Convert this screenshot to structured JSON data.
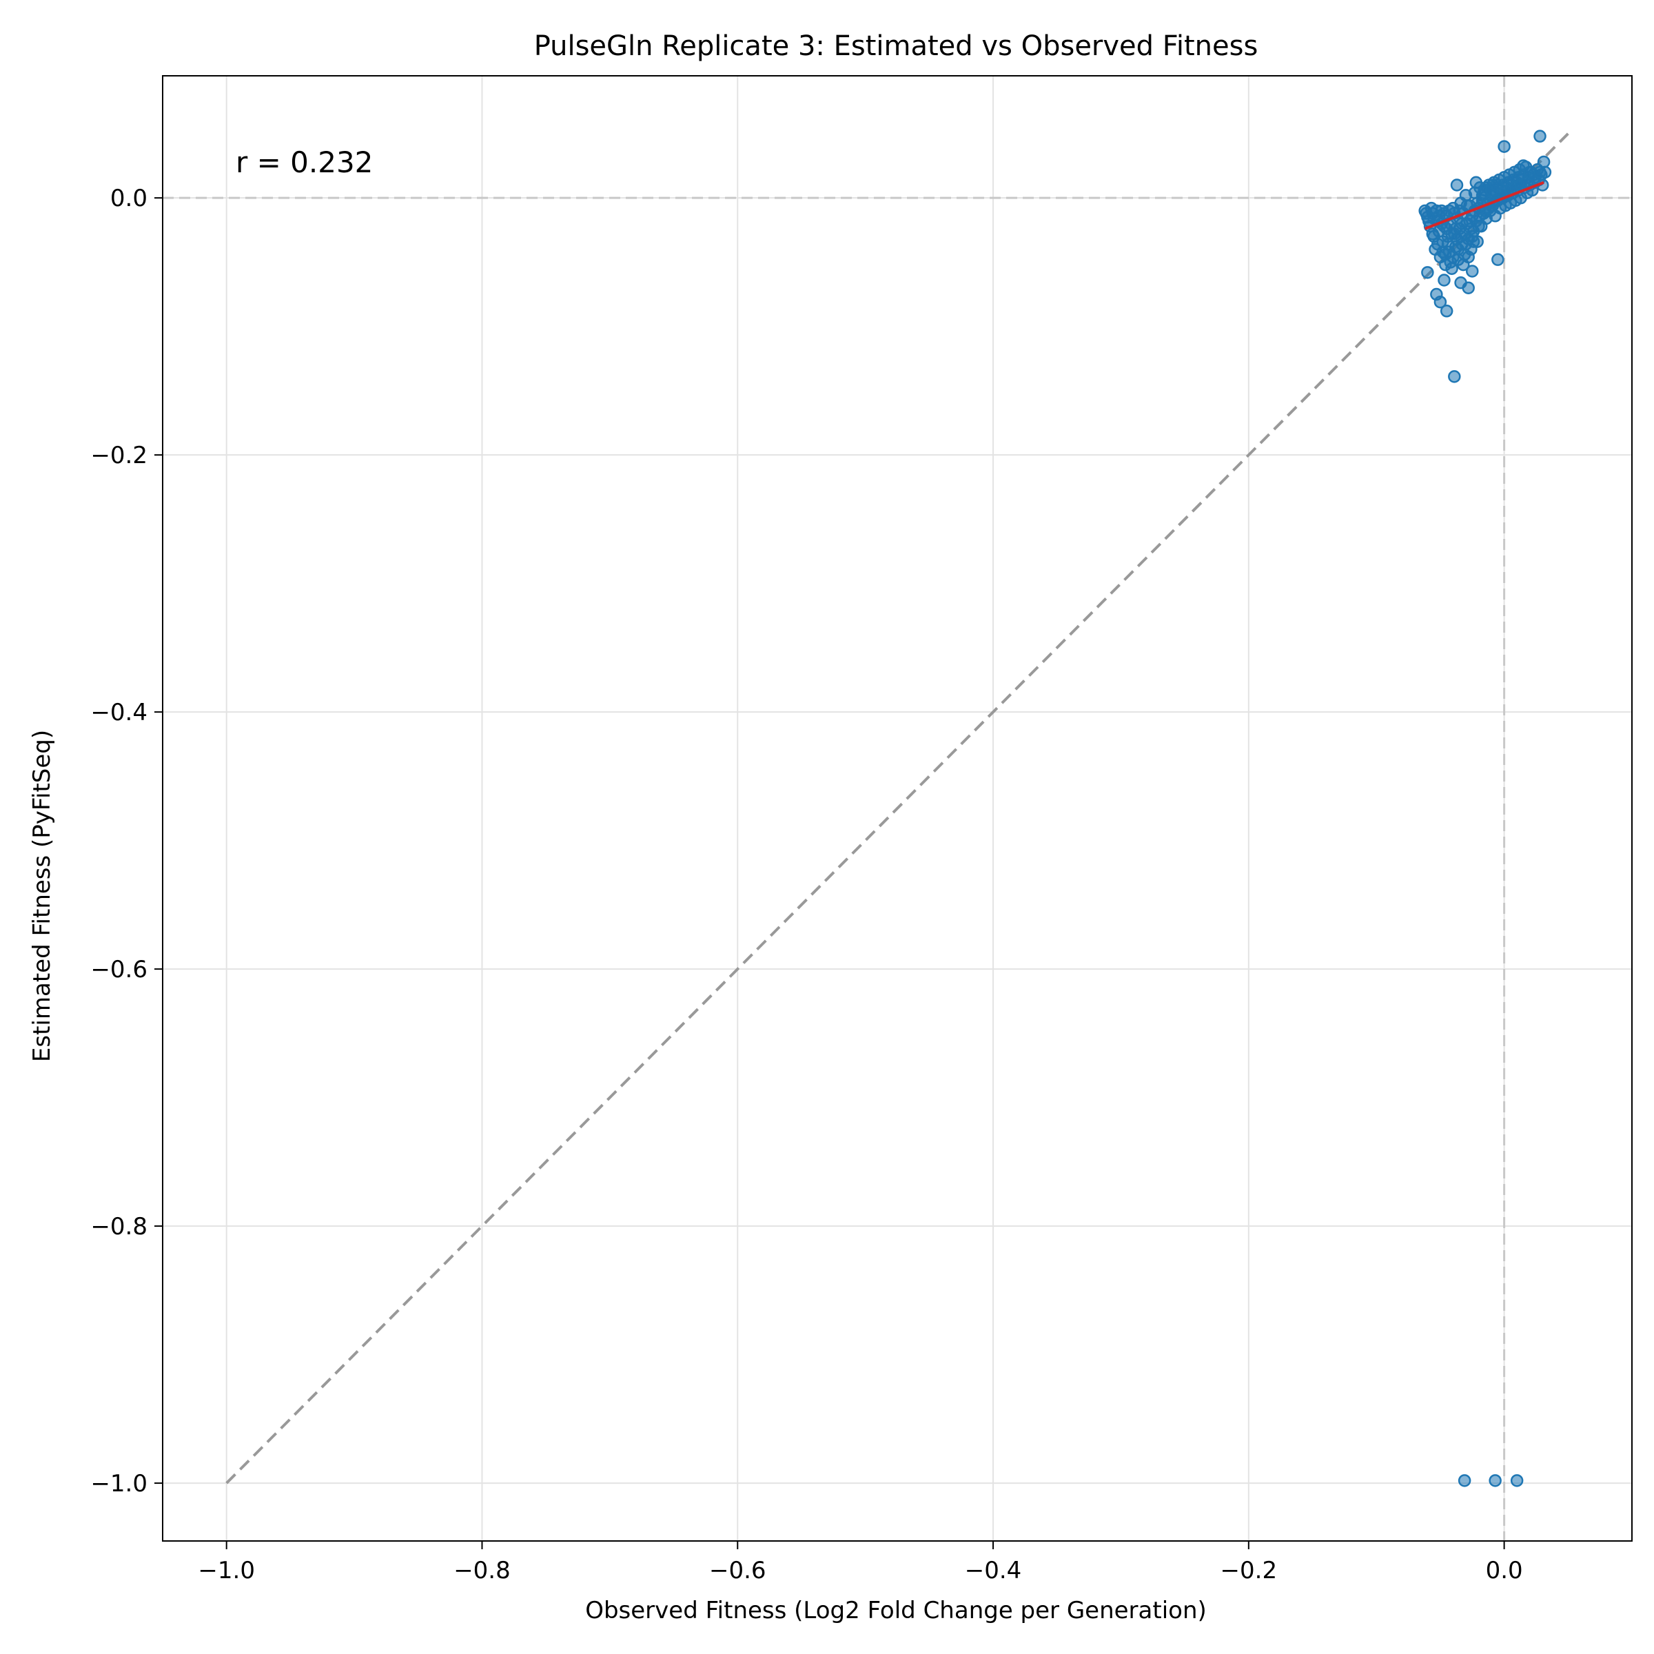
{
  "chart_data": {
    "type": "scatter",
    "title": "PulseGln Replicate 3: Estimated vs Observed Fitness",
    "xlabel": "Observed Fitness (Log2 Fold Change per Generation)",
    "ylabel": "Estimated Fitness (PyFitSeq)",
    "xlim": [
      -1.05,
      0.1
    ],
    "ylim": [
      -1.045,
      0.095
    ],
    "x_ticks": [
      -1.0,
      -0.8,
      -0.6,
      -0.4,
      -0.2,
      0.0
    ],
    "x_tick_labels": [
      "−1.0",
      "−0.8",
      "−0.6",
      "−0.4",
      "−0.2",
      "0.0"
    ],
    "y_ticks": [
      0.0,
      -0.2,
      -0.4,
      -0.6,
      -0.8,
      -1.0
    ],
    "y_tick_labels": [
      "0.0",
      "−0.2",
      "−0.4",
      "−0.6",
      "−0.8",
      "−1.0"
    ],
    "grid": true,
    "annotation": "r = 0.232",
    "colors": {
      "points": "#1f77b4",
      "fit_line": "#d62728",
      "identity_line": "#999999",
      "zero_lines": "#c8c8c8",
      "grid": "#e3e3e3"
    },
    "identity_line": {
      "x": [
        -1.0,
        0.05
      ],
      "y": [
        -1.0,
        0.05
      ]
    },
    "fit_line": {
      "x": [
        -0.062,
        0.031
      ],
      "y": [
        -0.024,
        0.012
      ]
    },
    "points": [
      {
        "x": -0.031,
        "y": -0.998
      },
      {
        "x": -0.007,
        "y": -0.998
      },
      {
        "x": 0.01,
        "y": -0.998
      },
      {
        "x": -0.039,
        "y": -0.139
      },
      {
        "x": -0.045,
        "y": -0.088
      },
      {
        "x": -0.05,
        "y": -0.081
      },
      {
        "x": -0.053,
        "y": -0.075
      },
      {
        "x": -0.028,
        "y": -0.07
      },
      {
        "x": -0.034,
        "y": -0.066
      },
      {
        "x": -0.047,
        "y": -0.064
      },
      {
        "x": -0.025,
        "y": -0.057
      },
      {
        "x": -0.06,
        "y": -0.058
      },
      {
        "x": -0.005,
        "y": -0.048
      },
      {
        "x": 0.0,
        "y": 0.04
      },
      {
        "x": 0.028,
        "y": 0.048
      },
      {
        "x": 0.031,
        "y": 0.028
      },
      {
        "x": 0.015,
        "y": 0.025
      },
      {
        "x": -0.022,
        "y": 0.012
      },
      {
        "x": -0.037,
        "y": 0.01
      },
      {
        "x": -0.062,
        "y": -0.01
      },
      {
        "x": -0.06,
        "y": -0.015
      },
      {
        "x": -0.058,
        "y": -0.022
      },
      {
        "x": -0.056,
        "y": -0.012
      },
      {
        "x": -0.055,
        "y": -0.03
      },
      {
        "x": -0.054,
        "y": -0.04
      },
      {
        "x": -0.052,
        "y": -0.018
      },
      {
        "x": -0.051,
        "y": -0.026
      },
      {
        "x": -0.05,
        "y": -0.046
      },
      {
        "x": -0.049,
        "y": -0.01
      },
      {
        "x": -0.048,
        "y": -0.034
      },
      {
        "x": -0.047,
        "y": -0.022
      },
      {
        "x": -0.046,
        "y": -0.052
      },
      {
        "x": -0.045,
        "y": -0.014
      },
      {
        "x": -0.044,
        "y": -0.03
      },
      {
        "x": -0.043,
        "y": -0.042
      },
      {
        "x": -0.042,
        "y": -0.02
      },
      {
        "x": -0.041,
        "y": -0.055
      },
      {
        "x": -0.04,
        "y": -0.008
      },
      {
        "x": -0.039,
        "y": -0.028
      },
      {
        "x": -0.038,
        "y": -0.038
      },
      {
        "x": -0.037,
        "y": -0.016
      },
      {
        "x": -0.036,
        "y": -0.048
      },
      {
        "x": -0.035,
        "y": -0.024
      },
      {
        "x": -0.034,
        "y": -0.004
      },
      {
        "x": -0.033,
        "y": -0.036
      },
      {
        "x": -0.032,
        "y": -0.012
      },
      {
        "x": -0.031,
        "y": -0.044
      },
      {
        "x": -0.03,
        "y": 0.002
      },
      {
        "x": -0.029,
        "y": -0.02
      },
      {
        "x": -0.028,
        "y": -0.032
      },
      {
        "x": -0.027,
        "y": -0.006
      },
      {
        "x": -0.026,
        "y": -0.04
      },
      {
        "x": -0.025,
        "y": -0.014
      },
      {
        "x": -0.024,
        "y": -0.026
      },
      {
        "x": -0.023,
        "y": 0.004
      },
      {
        "x": -0.022,
        "y": -0.018
      },
      {
        "x": -0.021,
        "y": -0.034
      },
      {
        "x": -0.02,
        "y": -0.008
      },
      {
        "x": -0.019,
        "y": 0.008
      },
      {
        "x": -0.018,
        "y": -0.022
      },
      {
        "x": -0.017,
        "y": -0.002
      },
      {
        "x": -0.016,
        "y": -0.012
      },
      {
        "x": -0.015,
        "y": 0.006
      },
      {
        "x": -0.014,
        "y": -0.016
      },
      {
        "x": -0.013,
        "y": -0.004
      },
      {
        "x": -0.012,
        "y": 0.01
      },
      {
        "x": -0.011,
        "y": -0.01
      },
      {
        "x": -0.01,
        "y": 0.002
      },
      {
        "x": -0.009,
        "y": -0.006
      },
      {
        "x": -0.008,
        "y": 0.012
      },
      {
        "x": -0.007,
        "y": -0.014
      },
      {
        "x": -0.006,
        "y": 0.004
      },
      {
        "x": -0.005,
        "y": -0.002
      },
      {
        "x": -0.004,
        "y": 0.014
      },
      {
        "x": -0.003,
        "y": -0.008
      },
      {
        "x": -0.002,
        "y": 0.006
      },
      {
        "x": -0.001,
        "y": 0.0
      },
      {
        "x": 0.0,
        "y": 0.016
      },
      {
        "x": 0.001,
        "y": -0.006
      },
      {
        "x": 0.002,
        "y": 0.008
      },
      {
        "x": 0.003,
        "y": 0.002
      },
      {
        "x": 0.004,
        "y": 0.018
      },
      {
        "x": 0.005,
        "y": -0.004
      },
      {
        "x": 0.006,
        "y": 0.01
      },
      {
        "x": 0.007,
        "y": 0.004
      },
      {
        "x": 0.008,
        "y": 0.02
      },
      {
        "x": 0.009,
        "y": -0.002
      },
      {
        "x": 0.01,
        "y": 0.012
      },
      {
        "x": 0.011,
        "y": 0.006
      },
      {
        "x": 0.012,
        "y": 0.022
      },
      {
        "x": 0.013,
        "y": 0.0
      },
      {
        "x": 0.014,
        "y": 0.014
      },
      {
        "x": 0.016,
        "y": 0.008
      },
      {
        "x": 0.017,
        "y": 0.024
      },
      {
        "x": 0.018,
        "y": 0.004
      },
      {
        "x": 0.019,
        "y": 0.016
      },
      {
        "x": 0.02,
        "y": 0.01
      },
      {
        "x": 0.021,
        "y": 0.02
      },
      {
        "x": 0.022,
        "y": 0.006
      },
      {
        "x": 0.023,
        "y": 0.018
      },
      {
        "x": 0.024,
        "y": 0.012
      },
      {
        "x": 0.026,
        "y": 0.022
      },
      {
        "x": 0.027,
        "y": 0.014
      },
      {
        "x": 0.029,
        "y": 0.018
      },
      {
        "x": 0.03,
        "y": 0.01
      },
      {
        "x": 0.032,
        "y": 0.02
      },
      {
        "x": -0.061,
        "y": -0.012
      },
      {
        "x": -0.059,
        "y": -0.018
      },
      {
        "x": -0.057,
        "y": -0.008
      },
      {
        "x": -0.055,
        "y": -0.016
      },
      {
        "x": -0.053,
        "y": -0.01
      },
      {
        "x": -0.051,
        "y": -0.014
      },
      {
        "x": -0.049,
        "y": -0.02
      },
      {
        "x": -0.047,
        "y": -0.012
      },
      {
        "x": -0.045,
        "y": -0.024
      },
      {
        "x": -0.043,
        "y": -0.01
      },
      {
        "x": -0.041,
        "y": -0.028
      },
      {
        "x": -0.039,
        "y": -0.012
      },
      {
        "x": -0.037,
        "y": -0.032
      },
      {
        "x": -0.035,
        "y": -0.01
      },
      {
        "x": -0.033,
        "y": -0.02
      },
      {
        "x": -0.031,
        "y": -0.028
      },
      {
        "x": -0.029,
        "y": -0.006
      },
      {
        "x": -0.027,
        "y": -0.018
      },
      {
        "x": -0.025,
        "y": -0.03
      },
      {
        "x": -0.023,
        "y": -0.01
      },
      {
        "x": -0.021,
        "y": -0.004
      },
      {
        "x": -0.019,
        "y": -0.014
      },
      {
        "x": -0.017,
        "y": 0.002
      },
      {
        "x": -0.015,
        "y": -0.01
      },
      {
        "x": -0.013,
        "y": 0.008
      },
      {
        "x": -0.011,
        "y": -0.002
      },
      {
        "x": -0.009,
        "y": 0.01
      },
      {
        "x": -0.007,
        "y": 0.002
      },
      {
        "x": -0.005,
        "y": 0.008
      },
      {
        "x": -0.003,
        "y": 0.0
      },
      {
        "x": -0.001,
        "y": 0.01
      },
      {
        "x": 0.001,
        "y": 0.002
      },
      {
        "x": 0.003,
        "y": 0.012
      },
      {
        "x": 0.005,
        "y": 0.006
      },
      {
        "x": 0.007,
        "y": 0.014
      },
      {
        "x": 0.009,
        "y": 0.008
      },
      {
        "x": 0.011,
        "y": 0.016
      },
      {
        "x": 0.013,
        "y": 0.01
      },
      {
        "x": 0.015,
        "y": 0.018
      },
      {
        "x": 0.018,
        "y": 0.012
      },
      {
        "x": 0.02,
        "y": 0.02
      },
      {
        "x": 0.024,
        "y": 0.016
      },
      {
        "x": 0.028,
        "y": 0.02
      },
      {
        "x": -0.044,
        "y": -0.036
      },
      {
        "x": -0.04,
        "y": -0.046
      },
      {
        "x": -0.036,
        "y": -0.04
      },
      {
        "x": -0.042,
        "y": -0.05
      },
      {
        "x": -0.038,
        "y": -0.024
      },
      {
        "x": -0.034,
        "y": -0.03
      },
      {
        "x": -0.03,
        "y": -0.036
      },
      {
        "x": -0.048,
        "y": -0.042
      },
      {
        "x": -0.052,
        "y": -0.036
      },
      {
        "x": -0.056,
        "y": -0.028
      },
      {
        "x": -0.046,
        "y": -0.044
      },
      {
        "x": -0.032,
        "y": -0.052
      },
      {
        "x": -0.028,
        "y": -0.046
      },
      {
        "x": -0.026,
        "y": -0.024
      },
      {
        "x": -0.024,
        "y": -0.034
      },
      {
        "x": -0.02,
        "y": -0.022
      },
      {
        "x": -0.018,
        "y": -0.006
      },
      {
        "x": -0.016,
        "y": 0.004
      },
      {
        "x": -0.012,
        "y": -0.008
      },
      {
        "x": -0.01,
        "y": 0.006
      },
      {
        "x": -0.008,
        "y": -0.004
      },
      {
        "x": -0.006,
        "y": 0.01
      }
    ]
  }
}
